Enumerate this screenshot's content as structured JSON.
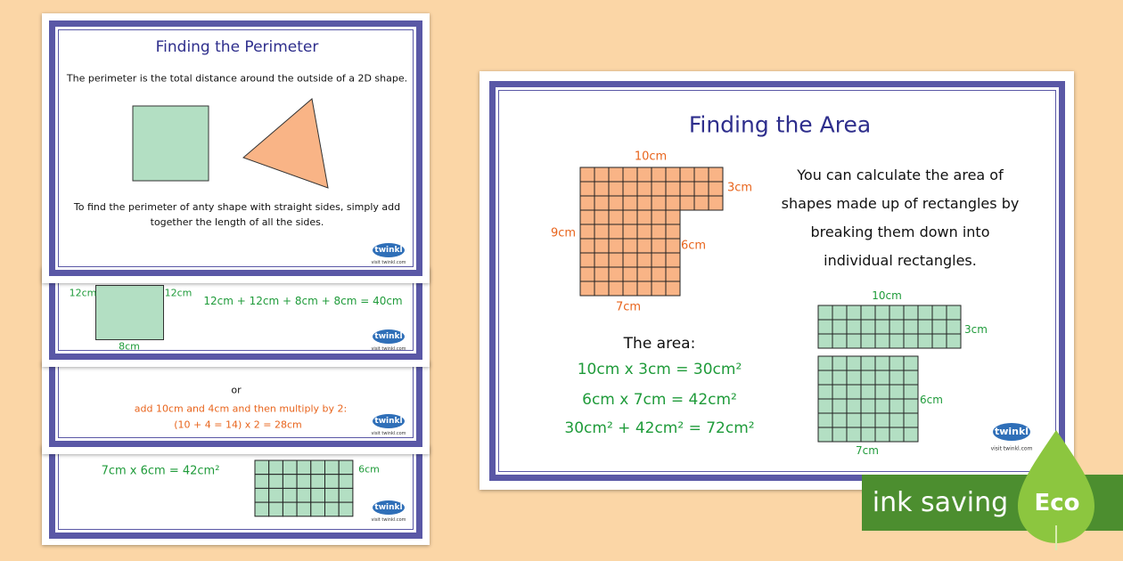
{
  "perimeter_card": {
    "title": "Finding the Perimeter",
    "intro": "The perimeter is the total distance around the outside of a 2D shape.",
    "instruction": "To find the perimeter of anty shape with straight sides, simply add together the length of all the sides."
  },
  "rectangle_card": {
    "side_left": "12cm",
    "side_right": "12cm",
    "calculation": "12cm + 12cm + 8cm + 8cm = 40cm",
    "bottom": "8cm"
  },
  "method_card": {
    "or": "or",
    "step": "add 10cm and 4cm and then multiply by 2:",
    "calculation": "(10 + 4 = 14) x 2 = 28cm"
  },
  "grid_card": {
    "calculation": "7cm x 6cm = 42cm²",
    "side": "6cm"
  },
  "area_card": {
    "title": "Finding the Area",
    "l_shape_labels": {
      "top": "10cm",
      "right": "3cm",
      "left": "9cm",
      "inner": "6cm",
      "bottom": "7cm"
    },
    "explanation": "You can calculate the area of shapes made up of rectangles by breaking them down into individual rectangles.",
    "area_heading": "The area:",
    "equations": [
      "10cm x 3cm = 30cm²",
      "6cm x 7cm = 42cm²",
      "30cm² + 42cm² = 72cm²"
    ],
    "green_labels": {
      "top": "10cm",
      "right": "3cm",
      "inner": "6cm",
      "bottom": "7cm"
    }
  },
  "logo": {
    "name": "twinkl",
    "url": "visit twinkl.com"
  },
  "badge": {
    "text": "ink saving",
    "eco": "Eco"
  }
}
